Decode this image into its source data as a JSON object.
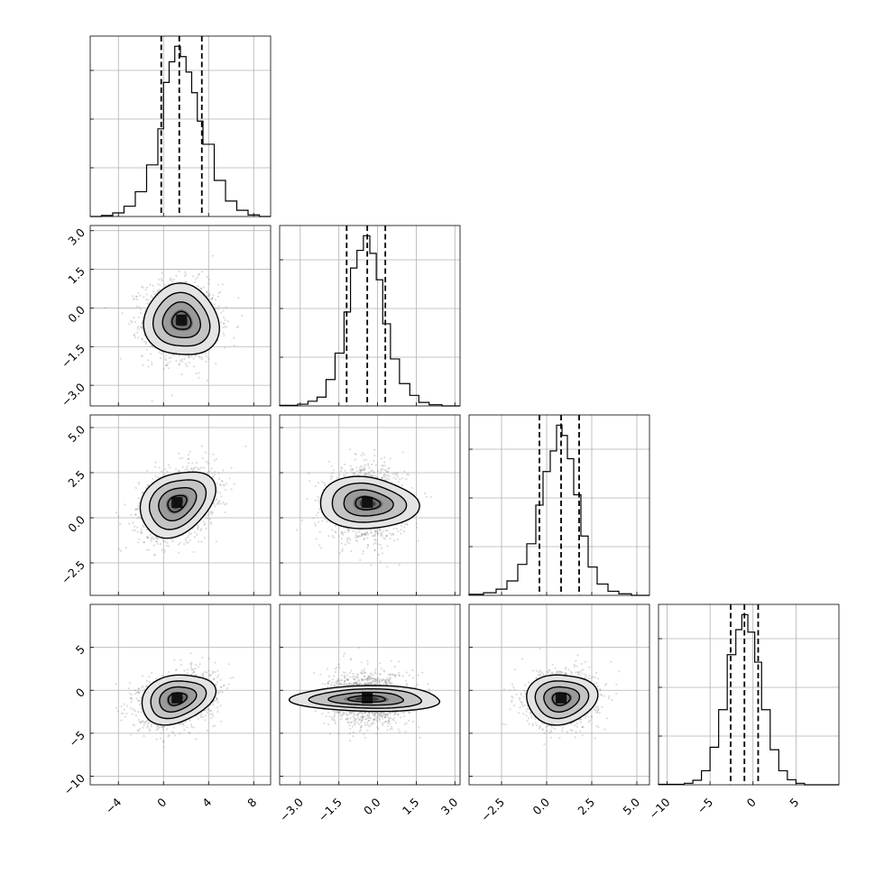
{
  "chart_data": {
    "type": "corner",
    "grid": true,
    "n_params": 4,
    "params": [
      {
        "index": 0,
        "mean": 1.4,
        "sd": 1.6,
        "range": [
          -6.5,
          9.5
        ],
        "ticks": [
          -4,
          0,
          4,
          8
        ],
        "tick_labels": [
          "−4",
          "0",
          "4",
          "8"
        ],
        "quantiles": [
          -0.2,
          1.4,
          3.4
        ],
        "hist": [
          {
            "x0": -6.5,
            "x1": -5.5,
            "count": 0
          },
          {
            "x0": -5.5,
            "x1": -4.5,
            "count": 2
          },
          {
            "x0": -4.5,
            "x1": -3.5,
            "count": 7
          },
          {
            "x0": -3.5,
            "x1": -2.5,
            "count": 20
          },
          {
            "x0": -2.5,
            "x1": -1.5,
            "count": 48
          },
          {
            "x0": -1.5,
            "x1": -0.5,
            "count": 100
          },
          {
            "x0": -0.5,
            "x1": 0.0,
            "count": 170
          },
          {
            "x0": 0.0,
            "x1": 0.5,
            "count": 260
          },
          {
            "x0": 0.5,
            "x1": 1.0,
            "count": 300
          },
          {
            "x0": 1.0,
            "x1": 1.5,
            "count": 330
          },
          {
            "x0": 1.5,
            "x1": 2.0,
            "count": 310
          },
          {
            "x0": 2.0,
            "x1": 2.5,
            "count": 280
          },
          {
            "x0": 2.5,
            "x1": 3.0,
            "count": 240
          },
          {
            "x0": 3.0,
            "x1": 3.5,
            "count": 185
          },
          {
            "x0": 3.5,
            "x1": 4.5,
            "count": 140
          },
          {
            "x0": 4.5,
            "x1": 5.5,
            "count": 70
          },
          {
            "x0": 5.5,
            "x1": 6.5,
            "count": 30
          },
          {
            "x0": 6.5,
            "x1": 7.5,
            "count": 12
          },
          {
            "x0": 7.5,
            "x1": 8.5,
            "count": 3
          },
          {
            "x0": 8.5,
            "x1": 9.5,
            "count": 0
          }
        ]
      },
      {
        "index": 1,
        "mean": -0.4,
        "sd": 0.72,
        "range": [
          -3.8,
          3.2
        ],
        "ticks": [
          -3.0,
          -1.5,
          0.0,
          1.5,
          3.0
        ],
        "tick_labels": [
          "−3.0",
          "−1.5",
          "0.0",
          "1.5",
          "3.0"
        ],
        "quantiles": [
          -1.2,
          -0.4,
          0.3
        ],
        "hist": [
          {
            "x0": -3.8,
            "x1": -3.1,
            "count": 1
          },
          {
            "x0": -3.1,
            "x1": -2.7,
            "count": 3
          },
          {
            "x0": -2.7,
            "x1": -2.35,
            "count": 8
          },
          {
            "x0": -2.35,
            "x1": -2.0,
            "count": 15
          },
          {
            "x0": -2.0,
            "x1": -1.65,
            "count": 45
          },
          {
            "x0": -1.65,
            "x1": -1.3,
            "count": 90
          },
          {
            "x0": -1.3,
            "x1": -1.05,
            "count": 160
          },
          {
            "x0": -1.05,
            "x1": -0.8,
            "count": 235
          },
          {
            "x0": -0.8,
            "x1": -0.55,
            "count": 265
          },
          {
            "x0": -0.55,
            "x1": -0.3,
            "count": 290
          },
          {
            "x0": -0.3,
            "x1": -0.05,
            "count": 260
          },
          {
            "x0": -0.05,
            "x1": 0.2,
            "count": 215
          },
          {
            "x0": 0.2,
            "x1": 0.5,
            "count": 140
          },
          {
            "x0": 0.5,
            "x1": 0.85,
            "count": 80
          },
          {
            "x0": 0.85,
            "x1": 1.25,
            "count": 38
          },
          {
            "x0": 1.25,
            "x1": 1.6,
            "count": 18
          },
          {
            "x0": 1.6,
            "x1": 2.0,
            "count": 6
          },
          {
            "x0": 2.0,
            "x1": 2.5,
            "count": 2
          },
          {
            "x0": 2.5,
            "x1": 3.2,
            "count": 0
          }
        ]
      },
      {
        "index": 2,
        "mean": 0.8,
        "sd": 0.95,
        "range": [
          -4.3,
          5.7
        ],
        "ticks": [
          -2.5,
          0.0,
          2.5,
          5.0
        ],
        "tick_labels": [
          "−2.5",
          "0.0",
          "2.5",
          "5.0"
        ],
        "quantiles": [
          -0.4,
          0.8,
          1.8
        ],
        "hist": [
          {
            "x0": -4.3,
            "x1": -3.5,
            "count": 2
          },
          {
            "x0": -3.5,
            "x1": -2.8,
            "count": 5
          },
          {
            "x0": -2.8,
            "x1": -2.2,
            "count": 12
          },
          {
            "x0": -2.2,
            "x1": -1.6,
            "count": 28
          },
          {
            "x0": -1.6,
            "x1": -1.1,
            "count": 60
          },
          {
            "x0": -1.1,
            "x1": -0.6,
            "count": 100
          },
          {
            "x0": -0.6,
            "x1": -0.2,
            "count": 175
          },
          {
            "x0": -0.2,
            "x1": 0.2,
            "count": 240
          },
          {
            "x0": 0.2,
            "x1": 0.55,
            "count": 280
          },
          {
            "x0": 0.55,
            "x1": 0.85,
            "count": 330
          },
          {
            "x0": 0.85,
            "x1": 1.15,
            "count": 310
          },
          {
            "x0": 1.15,
            "x1": 1.5,
            "count": 265
          },
          {
            "x0": 1.5,
            "x1": 1.9,
            "count": 195
          },
          {
            "x0": 1.9,
            "x1": 2.3,
            "count": 115
          },
          {
            "x0": 2.3,
            "x1": 2.8,
            "count": 55
          },
          {
            "x0": 2.8,
            "x1": 3.4,
            "count": 22
          },
          {
            "x0": 3.4,
            "x1": 4.0,
            "count": 8
          },
          {
            "x0": 4.0,
            "x1": 4.7,
            "count": 3
          },
          {
            "x0": 4.7,
            "x1": 5.7,
            "count": 0
          }
        ]
      },
      {
        "index": 3,
        "mean": -1.0,
        "sd": 1.5,
        "range": [
          -11,
          10
        ],
        "ticks": [
          -10,
          -5,
          0,
          5
        ],
        "tick_labels": [
          "−10",
          "−5",
          "0",
          "5"
        ],
        "quantiles": [
          -2.6,
          -1.0,
          0.6
        ],
        "hist": [
          {
            "x0": -11,
            "x1": -8,
            "count": 1
          },
          {
            "x0": -8,
            "x1": -7,
            "count": 3
          },
          {
            "x0": -7,
            "x1": -6,
            "count": 9
          },
          {
            "x0": -6,
            "x1": -5,
            "count": 28
          },
          {
            "x0": -5,
            "x1": -4,
            "count": 75
          },
          {
            "x0": -4,
            "x1": -3,
            "count": 150
          },
          {
            "x0": -3,
            "x1": -2,
            "count": 260
          },
          {
            "x0": -2,
            "x1": -1.3,
            "count": 310
          },
          {
            "x0": -1.3,
            "x1": -0.6,
            "count": 340
          },
          {
            "x0": -0.6,
            "x1": 0.2,
            "count": 305
          },
          {
            "x0": 0.2,
            "x1": 1.0,
            "count": 245
          },
          {
            "x0": 1.0,
            "x1": 2.0,
            "count": 150
          },
          {
            "x0": 2.0,
            "x1": 3.0,
            "count": 70
          },
          {
            "x0": 3.0,
            "x1": 4.0,
            "count": 28
          },
          {
            "x0": 4.0,
            "x1": 5.0,
            "count": 10
          },
          {
            "x0": 5.0,
            "x1": 6.0,
            "count": 3
          },
          {
            "x0": 6.0,
            "x1": 10,
            "count": 0
          }
        ]
      }
    ],
    "pairs": [
      {
        "row": 1,
        "col": 0,
        "center": [
          1.6,
          -0.5
        ],
        "corr": -0.05
      },
      {
        "row": 2,
        "col": 0,
        "center": [
          1.2,
          0.8
        ],
        "corr": 0.3
      },
      {
        "row": 2,
        "col": 1,
        "center": [
          -0.4,
          0.8
        ],
        "corr": 0.0
      },
      {
        "row": 3,
        "col": 0,
        "center": [
          1.2,
          -1.0
        ],
        "corr": 0.3
      },
      {
        "row": 3,
        "col": 1,
        "center": [
          -0.4,
          -1.0
        ],
        "corr": 0.0
      },
      {
        "row": 3,
        "col": 2,
        "center": [
          0.8,
          -1.0
        ],
        "corr": 0.1
      }
    ]
  }
}
